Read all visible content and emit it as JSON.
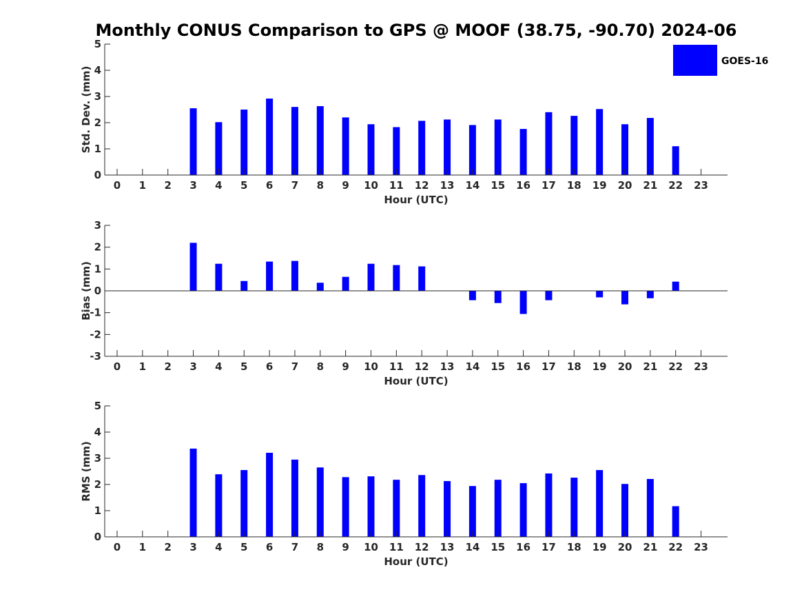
{
  "title": "Monthly CONUS Comparison to GPS @ MOOF (38.75, -90.70) 2024-06",
  "legend": {
    "label": "GOES-16",
    "color": "#0000FF"
  },
  "chart_data": [
    {
      "type": "bar",
      "categories": [
        "0",
        "1",
        "2",
        "3",
        "4",
        "5",
        "6",
        "7",
        "8",
        "9",
        "10",
        "11",
        "12",
        "13",
        "14",
        "15",
        "16",
        "17",
        "18",
        "19",
        "20",
        "21",
        "22",
        "23"
      ],
      "series": [
        {
          "name": "GOES-16",
          "values": [
            0,
            0,
            0,
            2.55,
            2.02,
            2.5,
            2.92,
            2.6,
            2.63,
            2.2,
            1.94,
            1.83,
            2.07,
            2.12,
            1.91,
            2.12,
            1.76,
            2.4,
            2.26,
            2.52,
            1.94,
            2.18,
            1.1,
            0
          ]
        }
      ],
      "xlabel": "Hour (UTC)",
      "ylabel": "Std. Dev. (mm)",
      "ylim": [
        0,
        5
      ],
      "yticks": [
        "0",
        "1",
        "2",
        "3",
        "4",
        "5"
      ],
      "legend": "top-right",
      "grid": false
    },
    {
      "type": "bar",
      "categories": [
        "0",
        "1",
        "2",
        "3",
        "4",
        "5",
        "6",
        "7",
        "8",
        "9",
        "10",
        "11",
        "12",
        "13",
        "14",
        "15",
        "16",
        "17",
        "18",
        "19",
        "20",
        "21",
        "22",
        "23"
      ],
      "series": [
        {
          "name": "GOES-16",
          "values": [
            0,
            0,
            0,
            2.2,
            1.24,
            0.45,
            1.34,
            1.37,
            0.37,
            0.64,
            1.24,
            1.18,
            1.12,
            0,
            -0.43,
            -0.56,
            -1.06,
            -0.43,
            0,
            -0.3,
            -0.62,
            -0.34,
            0.42,
            0
          ]
        }
      ],
      "xlabel": "Hour (UTC)",
      "ylabel": "Bias (mm)",
      "ylim": [
        -3,
        3
      ],
      "yticks": [
        "-3",
        "-2",
        "-1",
        "0",
        "1",
        "2",
        "3"
      ],
      "grid": false
    },
    {
      "type": "bar",
      "categories": [
        "0",
        "1",
        "2",
        "3",
        "4",
        "5",
        "6",
        "7",
        "8",
        "9",
        "10",
        "11",
        "12",
        "13",
        "14",
        "15",
        "16",
        "17",
        "18",
        "19",
        "20",
        "21",
        "22",
        "23"
      ],
      "series": [
        {
          "name": "GOES-16",
          "values": [
            0,
            0,
            0,
            3.37,
            2.39,
            2.55,
            3.21,
            2.95,
            2.65,
            2.28,
            2.31,
            2.18,
            2.36,
            2.13,
            1.94,
            2.18,
            2.05,
            2.42,
            2.26,
            2.55,
            2.02,
            2.21,
            1.17,
            0
          ]
        }
      ],
      "xlabel": "Hour (UTC)",
      "ylabel": "RMS (mm)",
      "ylim": [
        0,
        5
      ],
      "yticks": [
        "0",
        "1",
        "2",
        "3",
        "4",
        "5"
      ],
      "grid": false
    }
  ]
}
